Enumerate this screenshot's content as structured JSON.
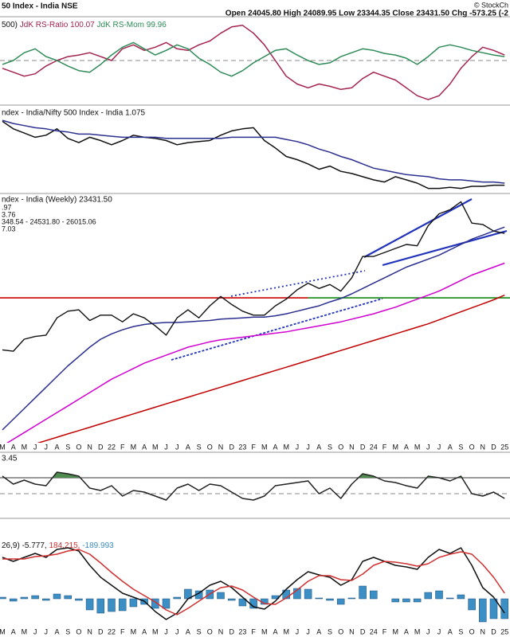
{
  "header": {
    "symbol": "50 Index - India NSE",
    "quote": "Open 24045.80 High 24089.95 Low 23344.35 Close 23431.50 Chg -573.25 (-2",
    "credit": "© StockCh"
  },
  "chart_data": [
    {
      "type": "line",
      "title": "500)",
      "ylim": [
        95,
        105
      ],
      "reference": 100,
      "series": [
        {
          "name": "JdK RS-Ratio 100.07",
          "color": "#a3234f",
          "values": [
            99.09,
            98.64,
            98.18,
            98.45,
            99.36,
            100,
            100.45,
            100.64,
            100.91,
            100.45,
            100,
            101.36,
            101.82,
            101.18,
            101.55,
            102.09,
            101.36,
            101.18,
            101.82,
            102.27,
            103.18,
            103.91,
            104.09,
            103.18,
            101.82,
            100,
            98.18,
            97.27,
            96.82,
            97.27,
            97,
            96.64,
            96.82,
            97.91,
            98.64,
            98.18,
            97.73,
            96.82,
            95.91,
            95.45,
            95.91,
            97.27,
            99.09,
            100.45,
            101.55,
            101.18,
            100.64
          ]
        },
        {
          "name": "JdK RS-Mom 99.96",
          "color": "#2e8b57",
          "values": [
            99.55,
            100,
            100.91,
            101.36,
            100.45,
            100,
            99.36,
            98.82,
            98.64,
            99.55,
            100.64,
            101.55,
            102.09,
            101.36,
            100.64,
            101.18,
            101.82,
            101.36,
            100.27,
            99.55,
            98.64,
            98.18,
            98.82,
            99.73,
            100.45,
            101.18,
            101.36,
            100.64,
            100,
            99.55,
            99.73,
            100.45,
            100.91,
            101.36,
            101.18,
            100.82,
            100.64,
            100.27,
            99.55,
            100.45,
            101.55,
            101.82,
            101.55,
            101.18,
            100.91,
            100.64,
            100.45
          ]
        }
      ]
    },
    {
      "type": "line",
      "title": "ndex - India/Nifty 500 Index - India 1.075",
      "ylim": [
        1.07,
        1.15
      ],
      "series": [
        {
          "color": "#111111",
          "values": [
            1.137,
            1.13,
            1.126,
            1.122,
            1.124,
            1.13,
            1.121,
            1.117,
            1.122,
            1.119,
            1.115,
            1.119,
            1.124,
            1.122,
            1.121,
            1.119,
            1.115,
            1.117,
            1.118,
            1.119,
            1.124,
            1.128,
            1.13,
            1.131,
            1.119,
            1.112,
            1.104,
            1.101,
            1.097,
            1.092,
            1.095,
            1.09,
            1.088,
            1.085,
            1.082,
            1.08,
            1.085,
            1.082,
            1.079,
            1.074,
            1.074,
            1.075,
            1.074,
            1.076,
            1.076,
            1.077,
            1.077
          ]
        },
        {
          "color": "#2b2f8f",
          "values": [
            1.138,
            1.135,
            1.133,
            1.131,
            1.13,
            1.128,
            1.127,
            1.125,
            1.125,
            1.124,
            1.123,
            1.122,
            1.122,
            1.122,
            1.122,
            1.121,
            1.121,
            1.121,
            1.121,
            1.121,
            1.121,
            1.122,
            1.122,
            1.122,
            1.122,
            1.122,
            1.12,
            1.118,
            1.115,
            1.111,
            1.108,
            1.104,
            1.101,
            1.097,
            1.093,
            1.091,
            1.089,
            1.087,
            1.086,
            1.085,
            1.083,
            1.082,
            1.082,
            1.081,
            1.08,
            1.08,
            1.079
          ]
        }
      ]
    },
    {
      "type": "line",
      "title": "ndex - India (Weekly) 23431.50",
      "ylim": [
        7740,
        26300
      ],
      "legend": [
        {
          "text": ".97",
          "color": "#2b2f8f"
        },
        {
          "text": "3.76",
          "color": "#b0002a"
        },
        {
          "text": "348.54 - 24531.80 - 26015.06",
          "color": "#777777"
        },
        {
          "text": "7.03",
          "color": "#d000d0"
        }
      ],
      "levels": [
        {
          "value": 18600,
          "color": "#cc0000"
        },
        {
          "value": 18600,
          "color": "#118811"
        }
      ],
      "categories": [
        "M",
        "A",
        "M",
        "J",
        "J",
        "A",
        "S",
        "O",
        "N",
        "D",
        "22",
        "F",
        "M",
        "A",
        "M",
        "J",
        "J",
        "A",
        "S",
        "O",
        "N",
        "D",
        "23",
        "F",
        "M",
        "A",
        "M",
        "J",
        "J",
        "A",
        "S",
        "O",
        "N",
        "D",
        "24",
        "F",
        "M",
        "A",
        "M",
        "J",
        "J",
        "A",
        "S",
        "O",
        "N",
        "D",
        "25"
      ],
      "series": [
        {
          "color": "#c00000",
          "values": [
            null,
            null,
            7400,
            7650,
            7900,
            8150,
            8400,
            8650,
            8900,
            9150,
            9400,
            9650,
            9900,
            10150,
            10400,
            10650,
            10900,
            11150,
            11400,
            11650,
            11900,
            12150,
            12400,
            12650,
            12900,
            13150,
            13400,
            13650,
            13900,
            14150,
            14400,
            14650,
            14900,
            15150,
            15400,
            15650,
            15900,
            16150,
            16400,
            16650,
            16950,
            17250,
            17550,
            17850,
            18150,
            18450,
            18800
          ]
        },
        {
          "color": "#d000d0",
          "values": [
            7500,
            8000,
            8500,
            9000,
            9500,
            10000,
            10500,
            11000,
            11500,
            12000,
            12500,
            12900,
            13300,
            13700,
            14000,
            14300,
            14600,
            14900,
            15100,
            15300,
            15450,
            15550,
            15650,
            15750,
            15850,
            15950,
            16050,
            16200,
            16350,
            16500,
            16650,
            16800,
            17000,
            17200,
            17400,
            17650,
            17900,
            18200,
            18500,
            18800,
            19100,
            19500,
            19900,
            20300,
            20600,
            20900,
            21200
          ]
        },
        {
          "color": "#2b2f8f",
          "values": [
            8700,
            9500,
            10300,
            11100,
            11900,
            12700,
            13500,
            14200,
            14900,
            15500,
            15900,
            16200,
            16450,
            16600,
            16700,
            16750,
            16750,
            16800,
            16850,
            16900,
            17000,
            17050,
            17100,
            17150,
            17150,
            17250,
            17400,
            17600,
            17800,
            18000,
            18300,
            18550,
            18900,
            19300,
            19700,
            20100,
            20500,
            20900,
            21200,
            21500,
            21800,
            22200,
            22600,
            23000,
            23300,
            23600,
            23900
          ]
        },
        {
          "color": "#111111",
          "values": [
            14700,
            14600,
            15500,
            15700,
            15800,
            17100,
            17600,
            17700,
            16900,
            17300,
            17300,
            16800,
            17400,
            17100,
            16500,
            15800,
            17100,
            17700,
            17100,
            18000,
            18700,
            18100,
            17600,
            17300,
            17300,
            18000,
            18500,
            19200,
            19700,
            19300,
            19600,
            19100,
            20100,
            21700,
            21700,
            22000,
            22300,
            22600,
            22500,
            24000,
            24900,
            25200,
            25800,
            24200,
            24100,
            23600,
            23431
          ]
        }
      ]
    },
    {
      "type": "line",
      "title": "3.45",
      "ylim": [
        -6,
        10
      ],
      "reference": 0,
      "upper_level": 4,
      "fill_color": "#4f8a4f",
      "series": [
        {
          "color": "#222222",
          "values": [
            4.4,
            2.4,
            3.4,
            2.4,
            2,
            5.4,
            5,
            4.4,
            1.4,
            0.8,
            2,
            -0.6,
            0.8,
            0.4,
            -0.6,
            -1.6,
            1.4,
            2.4,
            0.8,
            2.4,
            2,
            0.4,
            -1.2,
            -1.6,
            -0.6,
            2,
            2.4,
            2.8,
            3.2,
            0,
            1.4,
            -1.2,
            2.4,
            5,
            4.4,
            3.2,
            2.8,
            2,
            1.4,
            4.4,
            4,
            3.2,
            4.4,
            0,
            -0.6,
            0.4,
            -1.2
          ]
        }
      ]
    },
    {
      "type": "combo",
      "title": "26,9)",
      "ylim": [
        -360,
        1000
      ],
      "categories": [
        "M",
        "A",
        "M",
        "J",
        "J",
        "A",
        "S",
        "O",
        "N",
        "D",
        "22",
        "F",
        "M",
        "A",
        "M",
        "J",
        "J",
        "A",
        "S",
        "O",
        "N",
        "D",
        "23",
        "F",
        "M",
        "A",
        "M",
        "J",
        "J",
        "A",
        "S",
        "O",
        "N",
        "D",
        "24",
        "F",
        "M",
        "A",
        "M",
        "J",
        "J",
        "A",
        "S",
        "O",
        "N",
        "D",
        "25"
      ],
      "series": [
        {
          "name": "-5.777,",
          "style": "line",
          "color": "#111111",
          "values": [
            520,
            470,
            520,
            570,
            520,
            620,
            640,
            600,
            420,
            270,
            170,
            70,
            20,
            -30,
            -160,
            -260,
            -180,
            0,
            70,
            170,
            220,
            140,
            20,
            -100,
            -130,
            -30,
            120,
            240,
            340,
            300,
            270,
            170,
            240,
            470,
            520,
            470,
            420,
            400,
            370,
            520,
            620,
            570,
            640,
            420,
            140,
            20,
            -180
          ]
        },
        {
          "name": "184.215,",
          "style": "line",
          "color": "#d03030",
          "values": [
            500,
            500,
            500,
            530,
            540,
            560,
            600,
            620,
            560,
            450,
            330,
            220,
            120,
            40,
            -40,
            -140,
            -200,
            -120,
            -30,
            60,
            140,
            160,
            110,
            20,
            -60,
            -70,
            10,
            110,
            220,
            290,
            290,
            240,
            230,
            310,
            420,
            470,
            460,
            440,
            410,
            440,
            520,
            560,
            590,
            560,
            430,
            270,
            70
          ]
        },
        {
          "name": "-189.993",
          "style": "bar",
          "color": "#3b8fc4",
          "values": [
            20,
            -30,
            20,
            40,
            -20,
            60,
            40,
            -20,
            -140,
            -180,
            -160,
            -150,
            -100,
            -70,
            -120,
            -120,
            20,
            120,
            100,
            110,
            80,
            -20,
            -90,
            -120,
            -70,
            40,
            110,
            130,
            120,
            10,
            -20,
            -70,
            10,
            160,
            100,
            0,
            -40,
            -40,
            -40,
            80,
            100,
            10,
            50,
            -140,
            -290,
            -250,
            -250
          ]
        }
      ]
    }
  ]
}
